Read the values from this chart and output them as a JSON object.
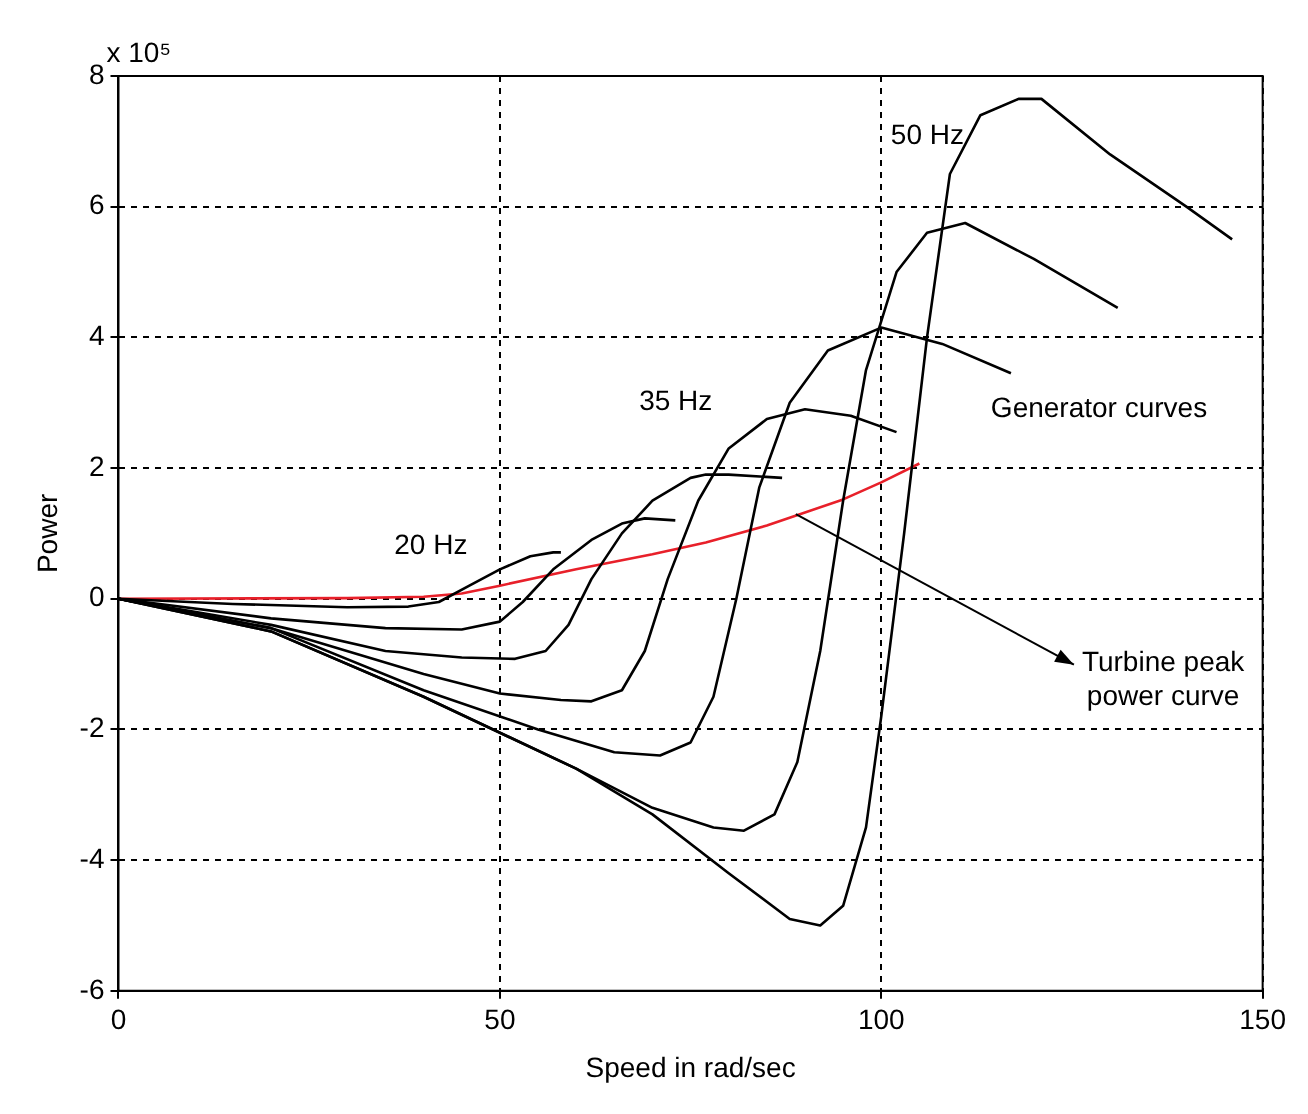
{
  "chart_data": {
    "type": "line",
    "xlabel": "Speed in rad/sec",
    "ylabel": "Power",
    "xlim": [
      0,
      150
    ],
    "xticks": [
      0,
      50,
      100,
      150
    ],
    "ylim": [
      -6,
      8
    ],
    "yticks": [
      -6,
      -4,
      -2,
      0,
      2,
      4,
      6,
      8
    ],
    "grid": true,
    "series": [
      {
        "color": "#000000",
        "x": [
          0,
          15,
          30,
          38,
          42,
          46,
          50,
          54,
          57,
          58
        ],
        "values": [
          0,
          -0.08,
          -0.13,
          -0.12,
          -0.05,
          0.2,
          0.45,
          0.65,
          0.71,
          0.71
        ]
      },
      {
        "color": "#000000",
        "x": [
          0,
          20,
          35,
          45,
          50,
          53,
          57,
          62,
          66,
          69,
          73
        ],
        "values": [
          0,
          -0.3,
          -0.45,
          -0.47,
          -0.35,
          -0.05,
          0.45,
          0.9,
          1.15,
          1.23,
          1.2
        ]
      },
      {
        "color": "#000000",
        "x": [
          0,
          20,
          35,
          45,
          52,
          56,
          59,
          62,
          66,
          70,
          75,
          77,
          80,
          87
        ],
        "values": [
          0,
          -0.4,
          -0.8,
          -0.9,
          -0.92,
          -0.8,
          -0.4,
          0.3,
          1,
          1.5,
          1.85,
          1.9,
          1.9,
          1.85
        ]
      },
      {
        "color": "#000000",
        "x": [
          0,
          20,
          40,
          50,
          58,
          62,
          66,
          69,
          72,
          76,
          80,
          85,
          90,
          96,
          102
        ],
        "values": [
          0,
          -0.45,
          -1.15,
          -1.45,
          -1.55,
          -1.57,
          -1.4,
          -0.8,
          0.3,
          1.5,
          2.3,
          2.75,
          2.9,
          2.8,
          2.55
        ]
      },
      {
        "color": "#000000",
        "x": [
          0,
          20,
          40,
          55,
          65,
          71,
          75,
          78,
          81,
          84,
          88,
          93,
          100,
          108,
          117
        ],
        "values": [
          0,
          -0.45,
          -1.4,
          -2,
          -2.35,
          -2.4,
          -2.2,
          -1.5,
          0,
          1.7,
          3,
          3.8,
          4.15,
          3.9,
          3.45
        ]
      },
      {
        "color": "#000000",
        "x": [
          0,
          20,
          40,
          60,
          70,
          78,
          82,
          86,
          89,
          92,
          95,
          98,
          102,
          106,
          111,
          120,
          131
        ],
        "values": [
          0,
          -0.5,
          -1.5,
          -2.6,
          -3.2,
          -3.5,
          -3.55,
          -3.3,
          -2.5,
          -0.8,
          1.5,
          3.5,
          5,
          5.6,
          5.75,
          5.2,
          4.45
        ]
      },
      {
        "color": "#000000",
        "x": [
          0,
          20,
          40,
          60,
          70,
          80,
          88,
          92,
          95,
          98,
          100,
          103,
          106,
          109,
          113,
          118,
          121,
          130,
          140,
          146
        ],
        "values": [
          0,
          -0.5,
          -1.5,
          -2.6,
          -3.3,
          -4.2,
          -4.9,
          -5,
          -4.7,
          -3.5,
          -1.8,
          1,
          4,
          6.5,
          7.4,
          7.65,
          7.65,
          6.8,
          6,
          5.5
        ]
      },
      {
        "color": "#e8202a",
        "x": [
          0,
          30,
          40,
          45,
          50,
          60,
          70,
          77,
          85,
          90,
          95,
          100,
          105
        ],
        "values": [
          0,
          0.01,
          0.03,
          0.08,
          0.2,
          0.45,
          0.68,
          0.86,
          1.12,
          1.32,
          1.52,
          1.78,
          2.07
        ]
      }
    ],
    "annotations": [
      "x 10⁵",
      "20 Hz",
      "35 Hz",
      "50 Hz",
      "Generator curves",
      "Turbine peak power curve"
    ]
  }
}
